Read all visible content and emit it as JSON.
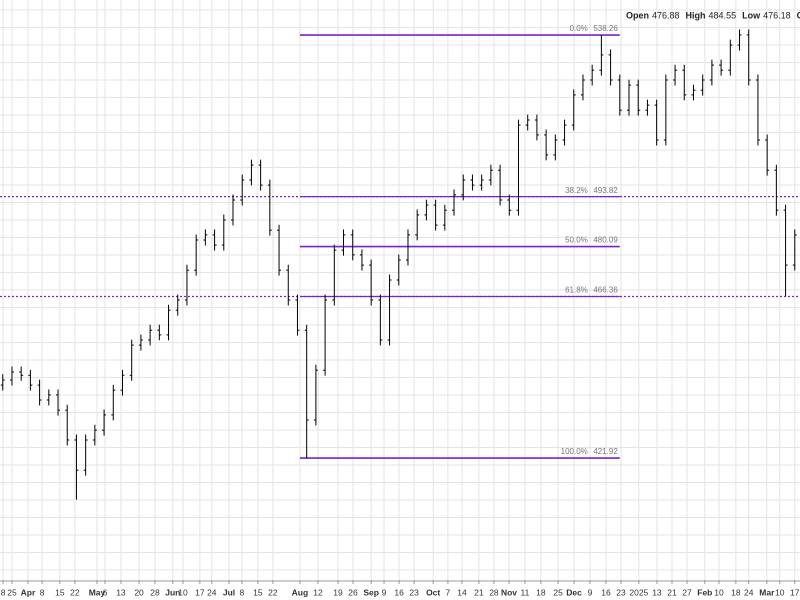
{
  "chart_data": {
    "type": "ohlc",
    "header": [
      {
        "label": "Open",
        "value": 476.88
      },
      {
        "label": "High",
        "value": 484.55
      },
      {
        "label": "Low",
        "value": 476.18
      },
      {
        "label": "Close"
      }
    ],
    "color": "#000000",
    "grid": true,
    "xlim": [
      -3.9,
      256.7
    ],
    "ylim": [
      388.4,
      547.9
    ],
    "xticks": [
      {
        "value": -2.9,
        "label": "8"
      },
      {
        "value": 0,
        "label": "25"
      },
      {
        "value": 5.2,
        "label": "Apr"
      },
      {
        "value": 9.8,
        "label": "8"
      },
      {
        "value": 15.6,
        "label": "15"
      },
      {
        "value": 20.5,
        "label": "22"
      },
      {
        "value": 27.7,
        "label": "May"
      },
      {
        "value": 30.3,
        "label": "6"
      },
      {
        "value": 35.5,
        "label": "13"
      },
      {
        "value": 41.4,
        "label": "20"
      },
      {
        "value": 46.6,
        "label": "28"
      },
      {
        "value": 52.4,
        "label": "Jun"
      },
      {
        "value": 55.7,
        "label": "10"
      },
      {
        "value": 61.2,
        "label": "17"
      },
      {
        "value": 65.1,
        "label": "24"
      },
      {
        "value": 70.7,
        "label": "Jul"
      },
      {
        "value": 74.9,
        "label": "8"
      },
      {
        "value": 80.1,
        "label": "15"
      },
      {
        "value": 85,
        "label": "22"
      },
      {
        "value": 93.8,
        "label": "Aug"
      },
      {
        "value": 99.7,
        "label": "12"
      },
      {
        "value": 106.2,
        "label": "19"
      },
      {
        "value": 111.1,
        "label": "26"
      },
      {
        "value": 117,
        "label": "Sep"
      },
      {
        "value": 121.2,
        "label": "9"
      },
      {
        "value": 126.1,
        "label": "16"
      },
      {
        "value": 131,
        "label": "23"
      },
      {
        "value": 137.2,
        "label": "Oct"
      },
      {
        "value": 142,
        "label": "7"
      },
      {
        "value": 146.6,
        "label": "14"
      },
      {
        "value": 152.1,
        "label": "21"
      },
      {
        "value": 157,
        "label": "28"
      },
      {
        "value": 161.9,
        "label": "Nov"
      },
      {
        "value": 167.1,
        "label": "11"
      },
      {
        "value": 172.3,
        "label": "18"
      },
      {
        "value": 177.9,
        "label": "25"
      },
      {
        "value": 183.1,
        "label": "Dec"
      },
      {
        "value": 188.3,
        "label": "9"
      },
      {
        "value": 193.5,
        "label": "16"
      },
      {
        "value": 198.4,
        "label": "23"
      },
      {
        "value": 204.2,
        "label": "2025"
      },
      {
        "value": 210.1,
        "label": "13"
      },
      {
        "value": 215,
        "label": "21"
      },
      {
        "value": 219.9,
        "label": "27"
      },
      {
        "value": 225.7,
        "label": "Feb"
      },
      {
        "value": 230.3,
        "label": "10"
      },
      {
        "value": 235.8,
        "label": "18"
      },
      {
        "value": 240,
        "label": "24"
      },
      {
        "value": 245.9,
        "label": "Mar"
      },
      {
        "value": 250.1,
        "label": "10"
      },
      {
        "value": 255,
        "label": "17"
      }
    ],
    "x": [
      -3,
      0,
      3,
      6,
      9,
      12,
      15,
      18,
      21,
      24,
      27,
      30,
      33,
      36,
      39,
      42,
      45,
      48,
      51,
      54,
      57,
      60,
      63,
      66,
      69,
      72,
      75,
      78,
      81,
      84,
      87,
      90,
      93,
      96,
      99,
      102,
      105,
      108,
      111,
      114,
      117,
      120,
      123,
      126,
      129,
      132,
      135,
      138,
      141,
      144,
      147,
      150,
      153,
      156,
      159,
      162,
      165,
      168,
      171,
      174,
      177,
      180,
      183,
      186,
      189,
      192,
      195,
      198,
      201,
      204,
      207,
      210,
      213,
      216,
      219,
      222,
      225,
      228,
      231,
      234,
      237,
      240,
      243,
      246,
      249,
      252,
      255
    ],
    "open": [
      442,
      443.4,
      445.6,
      444.7,
      442,
      437.9,
      439.3,
      435.1,
      426.9,
      418.6,
      426.9,
      429.6,
      433.8,
      440.6,
      444.7,
      453,
      454.4,
      457.1,
      455.8,
      462.6,
      465.4,
      473.6,
      481.9,
      483.3,
      480.5,
      487.4,
      492.9,
      498.4,
      502.5,
      497,
      484.6,
      473.6,
      465.4,
      457.1,
      432.4,
      446.1,
      465.4,
      479.1,
      483.3,
      477.8,
      475,
      465.4,
      454.4,
      470.9,
      476.4,
      483.3,
      488.8,
      491.5,
      486,
      490.1,
      494.3,
      498.4,
      497,
      498.4,
      501.1,
      492.9,
      490.1,
      513.5,
      514.9,
      510.8,
      505.3,
      509.4,
      513.5,
      521.8,
      525.9,
      528.6,
      532.8,
      525.9,
      517.6,
      524.5,
      517.6,
      519,
      509.4,
      525.9,
      528.6,
      521.8,
      523.1,
      525.9,
      530,
      528.6,
      535.5,
      538.3,
      525.9,
      509.4,
      501.1,
      490.1,
      475
    ],
    "high": [
      445,
      447.1,
      447.1,
      446.2,
      443.5,
      440.8,
      440.8,
      436.6,
      428.4,
      428.4,
      431.1,
      435.3,
      442.1,
      446.2,
      454.5,
      455.9,
      458.6,
      458.6,
      464.1,
      466.9,
      475.1,
      483.4,
      484.8,
      484.8,
      488.9,
      494.4,
      499.9,
      504,
      504,
      498.5,
      486.1,
      475.1,
      466.9,
      458.6,
      447.6,
      466.9,
      480.6,
      484.8,
      484.8,
      479.3,
      476.5,
      466.9,
      472.4,
      477.9,
      484.8,
      490.3,
      493,
      493,
      491.6,
      495.8,
      499.9,
      499.9,
      499.9,
      502.6,
      502.6,
      494.4,
      515,
      516.4,
      516.4,
      512.3,
      510.9,
      515,
      523.3,
      527.4,
      530.1,
      538.26,
      534.3,
      527.4,
      526,
      526,
      520.5,
      520.5,
      527.4,
      530.1,
      530.1,
      524.6,
      527.4,
      531.5,
      531.5,
      537,
      539.8,
      539.8,
      527.4,
      510.9,
      502.6,
      491.6,
      484.8
    ],
    "low": [
      440.5,
      441.9,
      443.2,
      440.5,
      436.4,
      436.4,
      433.6,
      425.4,
      410.5,
      417.1,
      425.4,
      428.1,
      432.3,
      439.1,
      443.2,
      451.5,
      452.9,
      454.3,
      454.3,
      461.1,
      463.9,
      472.1,
      480.4,
      479,
      479,
      485.9,
      491.4,
      496.9,
      495.5,
      483.1,
      472.1,
      463.9,
      455.6,
      421.9,
      430.9,
      444.6,
      463.9,
      477.6,
      476.3,
      473.5,
      463.9,
      452.9,
      452.9,
      469.4,
      474.9,
      481.8,
      487.3,
      484.5,
      484.5,
      488.6,
      492.8,
      495.5,
      495.5,
      496.9,
      491.4,
      488.6,
      488.6,
      512,
      509.3,
      503.8,
      503.8,
      507.9,
      512,
      520.3,
      524.4,
      527.1,
      524.4,
      516.1,
      516.1,
      516.1,
      516.1,
      507.9,
      507.9,
      524.4,
      520.3,
      520.3,
      521.6,
      524.4,
      527.1,
      527.1,
      534,
      524.4,
      507.9,
      499.6,
      488.6,
      466.4,
      473.5
    ],
    "close": [
      443.4,
      445.6,
      444.7,
      442,
      437.9,
      439.3,
      435.1,
      426.9,
      418.6,
      426.9,
      429.6,
      433.8,
      440.6,
      444.7,
      453,
      454.4,
      457.1,
      455.8,
      462.6,
      465.4,
      473.6,
      481.9,
      483.3,
      480.5,
      487.4,
      492.9,
      498.4,
      502.5,
      497,
      484.6,
      473.6,
      465.4,
      457.1,
      432.4,
      446.1,
      465.4,
      479.1,
      483.3,
      477.8,
      475,
      465.4,
      454.4,
      470.9,
      476.4,
      483.3,
      488.8,
      491.5,
      486,
      490.1,
      494.3,
      498.4,
      497,
      498.4,
      501.1,
      492.9,
      490.1,
      513.5,
      514.9,
      510.8,
      505.3,
      509.4,
      513.5,
      521.8,
      525.9,
      528.6,
      532.8,
      525.9,
      517.6,
      524.5,
      517.6,
      519,
      509.4,
      525.9,
      528.6,
      521.8,
      523.1,
      525.9,
      530,
      528.6,
      535.5,
      538.3,
      525.9,
      509.4,
      501.1,
      490.1,
      475,
      483.3
    ],
    "fib": {
      "color": "#7b22c9",
      "range": [
        93.8,
        198
      ],
      "levels": [
        {
          "label": "0.0%",
          "value": 538.26,
          "extended": false
        },
        {
          "label": "38.2%",
          "value": 493.82,
          "extended": true
        },
        {
          "label": "50.0%",
          "value": 480.09,
          "extended": false
        },
        {
          "label": "61.8%",
          "value": 466.36,
          "extended": true
        },
        {
          "label": "100.0%",
          "value": 421.92,
          "extended": false
        }
      ]
    }
  }
}
